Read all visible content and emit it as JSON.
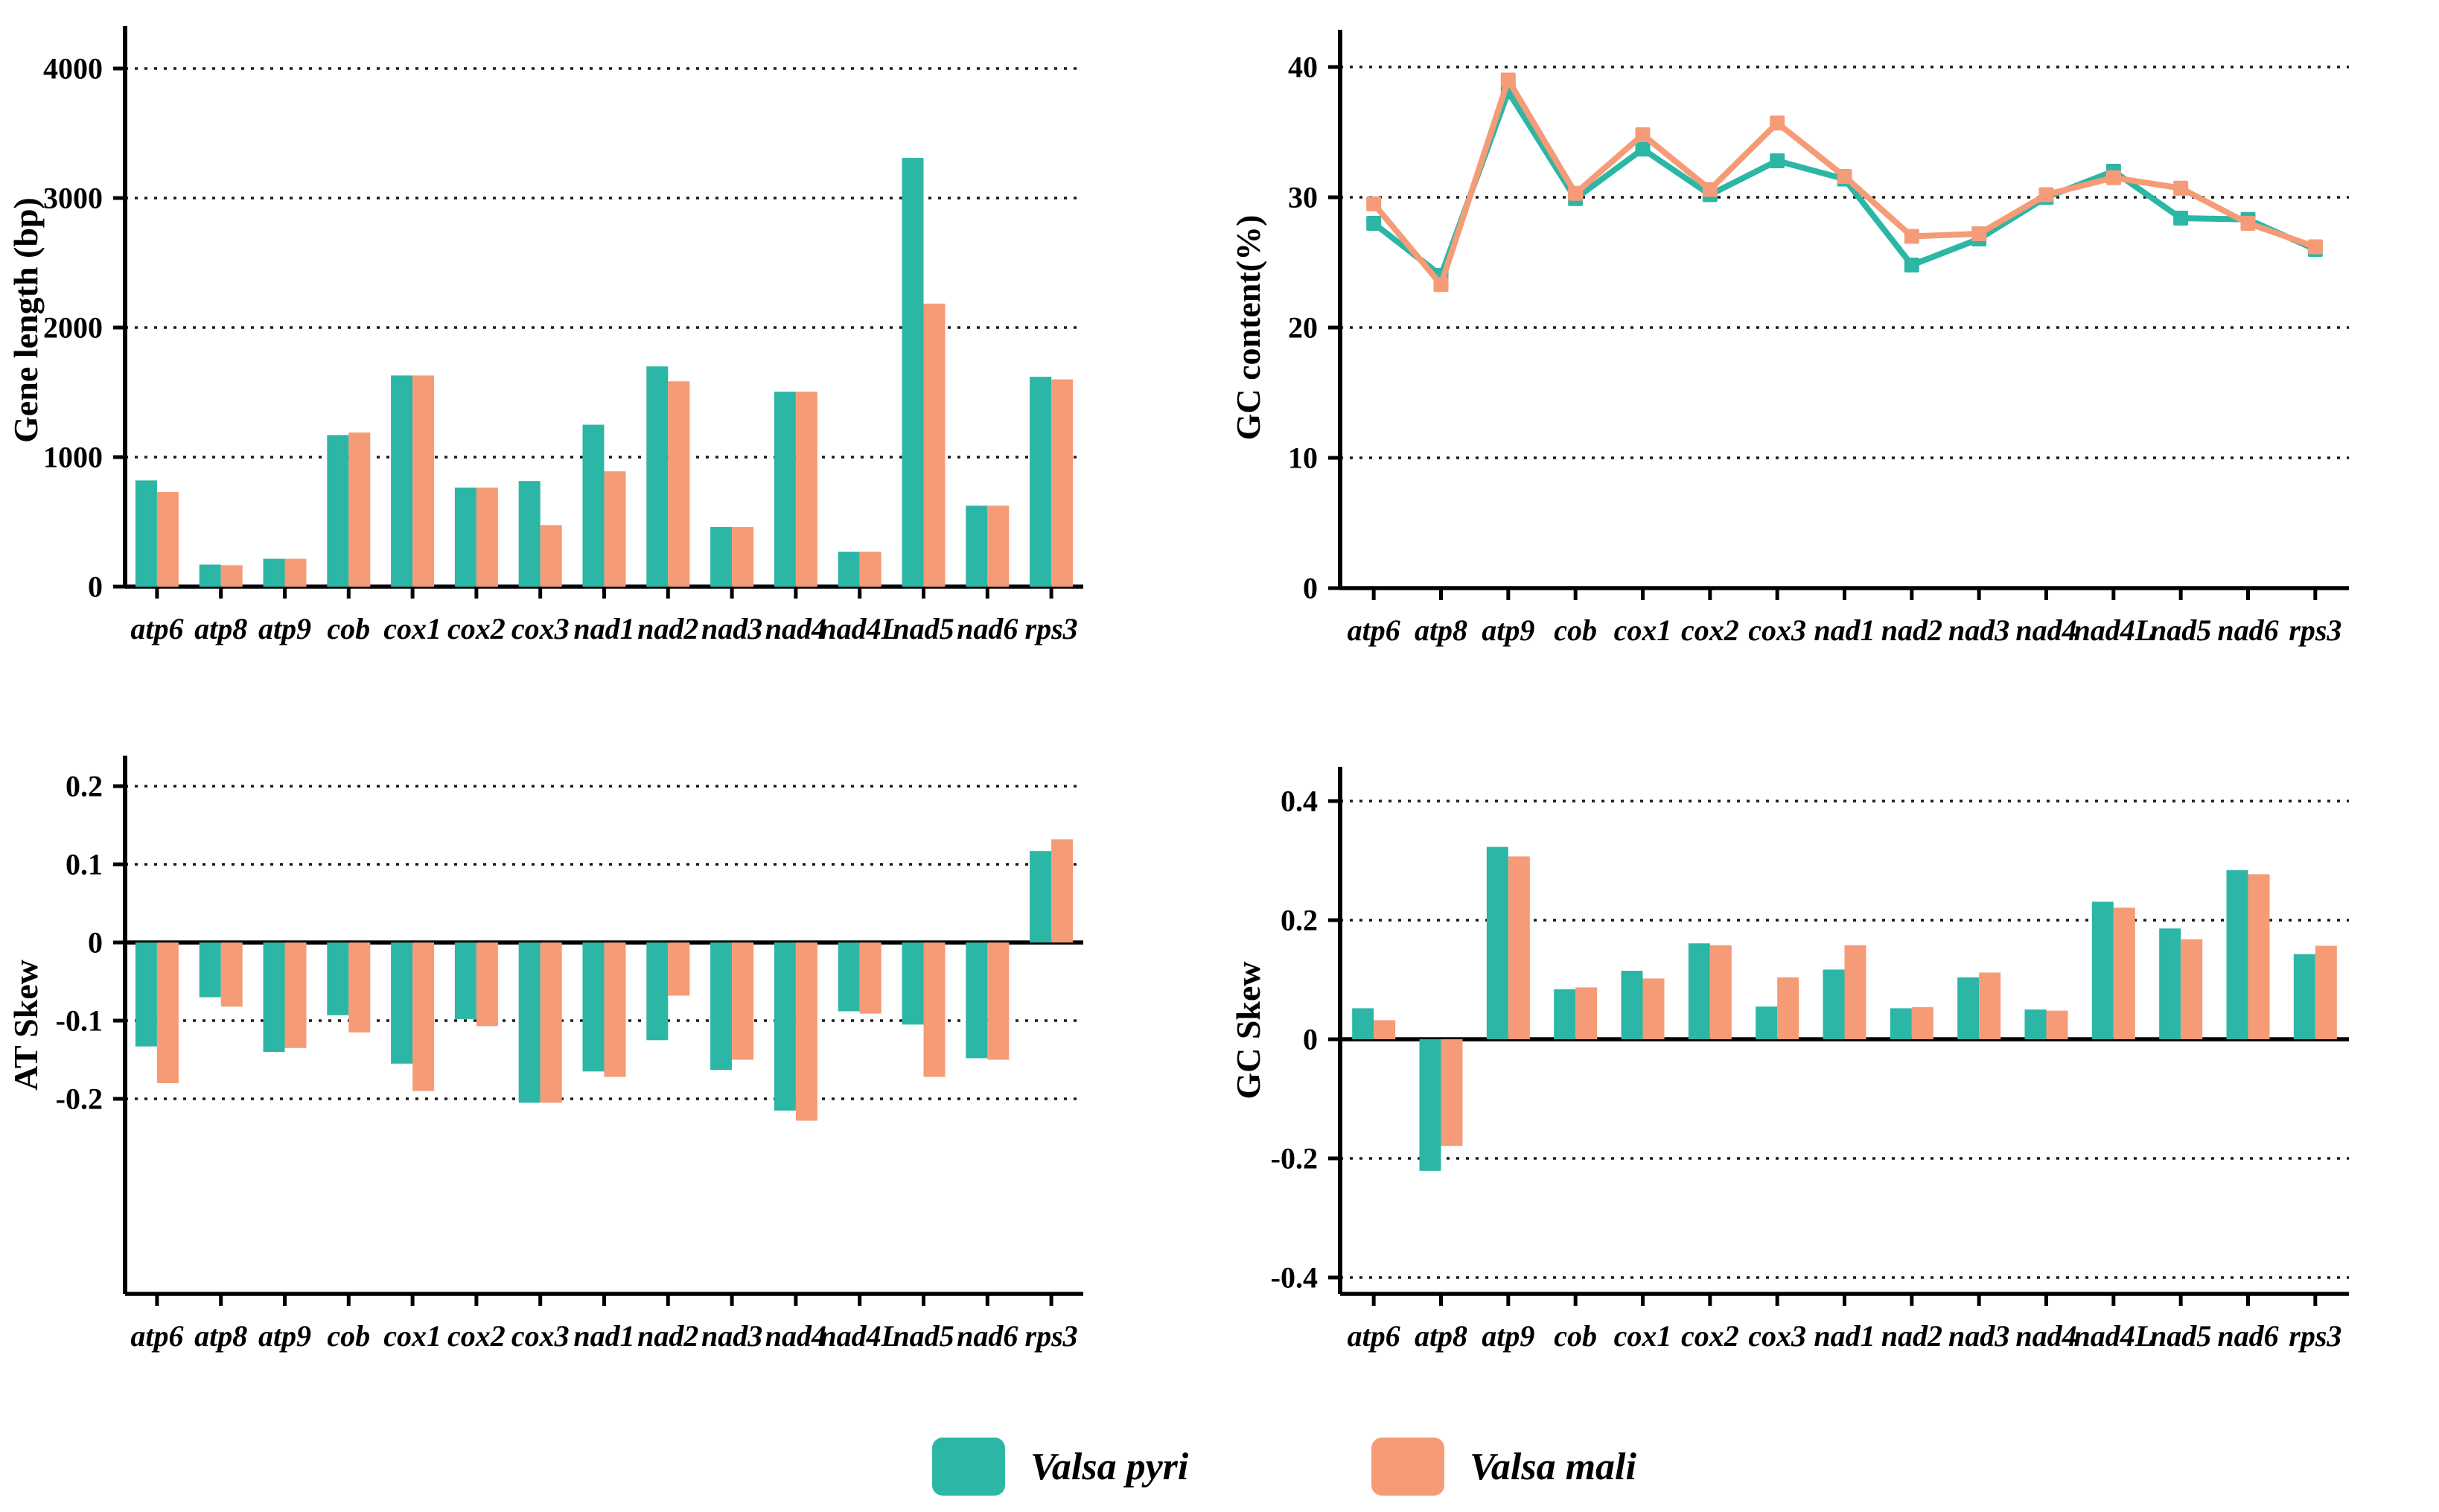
{
  "figure": {
    "background": "#ffffff",
    "text_color": "#000000",
    "gridline_color": "#1a1a1a"
  },
  "colors": {
    "pyri": "#2CB6A6",
    "mali": "#F59B77"
  },
  "legend": {
    "items": [
      {
        "key": "pyri",
        "label": "Valsa pyri"
      },
      {
        "key": "mali",
        "label": "Valsa mali"
      }
    ]
  },
  "categories": [
    "atp6",
    "atp8",
    "atp9",
    "cob",
    "cox1",
    "cox2",
    "cox3",
    "nad1",
    "nad2",
    "nad3",
    "nad4",
    "nad4L",
    "nad5",
    "nad6",
    "rps3"
  ],
  "chart_data": [
    {
      "id": "gene-length",
      "type": "bar",
      "title": "",
      "ylabel": "Gene length (bp)",
      "xlabel": "",
      "ylim": [
        0,
        4330
      ],
      "grid": "dotted-horizontal",
      "yticks": [
        {
          "v": 4000,
          "label": "4000"
        },
        {
          "v": 3000,
          "label": "3000"
        },
        {
          "v": 2000,
          "label": "2000"
        },
        {
          "v": 1000,
          "label": "1000"
        },
        {
          "v": 0,
          "label": "0"
        }
      ],
      "categories": [
        "atp6",
        "atp8",
        "atp9",
        "cob",
        "cox1",
        "cox2",
        "cox3",
        "nad1",
        "nad2",
        "nad3",
        "nad4",
        "nad4L",
        "nad5",
        "nad6",
        "rps3"
      ],
      "series": [
        {
          "name": "Valsa pyri",
          "key": "pyri",
          "values": [
            820,
            170,
            215,
            1170,
            1630,
            765,
            815,
            1250,
            1700,
            460,
            1505,
            270,
            3310,
            625,
            1620
          ]
        },
        {
          "name": "Valsa mali",
          "key": "mali",
          "values": [
            730,
            165,
            215,
            1190,
            1630,
            765,
            475,
            890,
            1585,
            460,
            1505,
            270,
            2185,
            625,
            1600
          ]
        }
      ]
    },
    {
      "id": "gc-content",
      "type": "line",
      "title": "",
      "ylabel": "GC content(%)",
      "xlabel": "",
      "ylim": [
        0,
        43
      ],
      "grid": "dotted-horizontal",
      "yticks": [
        {
          "v": 40,
          "label": "40"
        },
        {
          "v": 30,
          "label": "30"
        },
        {
          "v": 20,
          "label": "20"
        },
        {
          "v": 10,
          "label": "10"
        },
        {
          "v": 0,
          "label": "0"
        }
      ],
      "categories": [
        "atp6",
        "atp8",
        "atp9",
        "cob",
        "cox1",
        "cox2",
        "cox3",
        "nad1",
        "nad2",
        "nad3",
        "nad4",
        "nad4L",
        "nad5",
        "nad6",
        "rps3"
      ],
      "series": [
        {
          "name": "Valsa pyri",
          "key": "pyri",
          "values": [
            28.0,
            24.0,
            38.1,
            29.9,
            33.7,
            30.2,
            32.8,
            31.4,
            24.8,
            26.8,
            30.0,
            32.0,
            28.4,
            28.3,
            26.0
          ]
        },
        {
          "name": "Valsa mali",
          "key": "mali",
          "values": [
            29.5,
            23.3,
            39.0,
            30.3,
            34.8,
            30.6,
            35.7,
            31.6,
            27.0,
            27.2,
            30.2,
            31.5,
            30.7,
            28.0,
            26.2
          ]
        }
      ]
    },
    {
      "id": "at-skew",
      "type": "bar",
      "title": "",
      "ylabel": "AT Skew",
      "xlabel": "",
      "ylim": [
        -0.25,
        0.24
      ],
      "grid": "dotted-horizontal",
      "yticks": [
        {
          "v": 0.2,
          "label": "0.2"
        },
        {
          "v": 0.1,
          "label": "0.1"
        },
        {
          "v": 0,
          "label": "0"
        },
        {
          "v": -0.1,
          "label": "-0.1"
        },
        {
          "v": -0.2,
          "label": "-0.2"
        }
      ],
      "categories": [
        "atp6",
        "atp8",
        "atp9",
        "cob",
        "cox1",
        "cox2",
        "cox3",
        "nad1",
        "nad2",
        "nad3",
        "nad4",
        "nad4L",
        "nad5",
        "nad6",
        "rps3"
      ],
      "series": [
        {
          "name": "Valsa pyri",
          "key": "pyri",
          "values": [
            -0.133,
            -0.07,
            -0.14,
            -0.093,
            -0.155,
            -0.098,
            -0.205,
            -0.165,
            -0.125,
            -0.163,
            -0.215,
            -0.088,
            -0.105,
            -0.148,
            0.117
          ]
        },
        {
          "name": "Valsa mali",
          "key": "mali",
          "values": [
            -0.18,
            -0.082,
            -0.135,
            -0.115,
            -0.19,
            -0.107,
            -0.205,
            -0.172,
            -0.068,
            -0.15,
            -0.228,
            -0.091,
            -0.172,
            -0.15,
            0.132
          ]
        }
      ]
    },
    {
      "id": "gc-skew",
      "type": "bar",
      "title": "",
      "ylabel": "GC Skew",
      "xlabel": "",
      "ylim": [
        -0.457,
        0.45
      ],
      "grid": "dotted-horizontal",
      "yticks": [
        {
          "v": 0.4,
          "label": "0.4"
        },
        {
          "v": 0.2,
          "label": "0.2"
        },
        {
          "v": 0,
          "label": "0"
        },
        {
          "v": -0.2,
          "label": "-0.2"
        },
        {
          "v": -0.4,
          "label": "-0.4"
        }
      ],
      "categories": [
        "atp6",
        "atp8",
        "atp9",
        "cob",
        "cox1",
        "cox2",
        "cox3",
        "nad1",
        "nad2",
        "nad3",
        "nad4",
        "nad4L",
        "nad5",
        "nad6",
        "rps3"
      ],
      "series": [
        {
          "name": "Valsa pyri",
          "key": "pyri",
          "values": [
            0.052,
            -0.221,
            0.323,
            0.084,
            0.115,
            0.161,
            0.055,
            0.117,
            0.052,
            0.104,
            0.05,
            0.231,
            0.186,
            0.284,
            0.143
          ]
        },
        {
          "name": "Valsa mali",
          "key": "mali",
          "values": [
            0.032,
            -0.179,
            0.307,
            0.087,
            0.102,
            0.158,
            0.104,
            0.158,
            0.054,
            0.112,
            0.048,
            0.221,
            0.168,
            0.277,
            0.157
          ]
        }
      ]
    }
  ]
}
